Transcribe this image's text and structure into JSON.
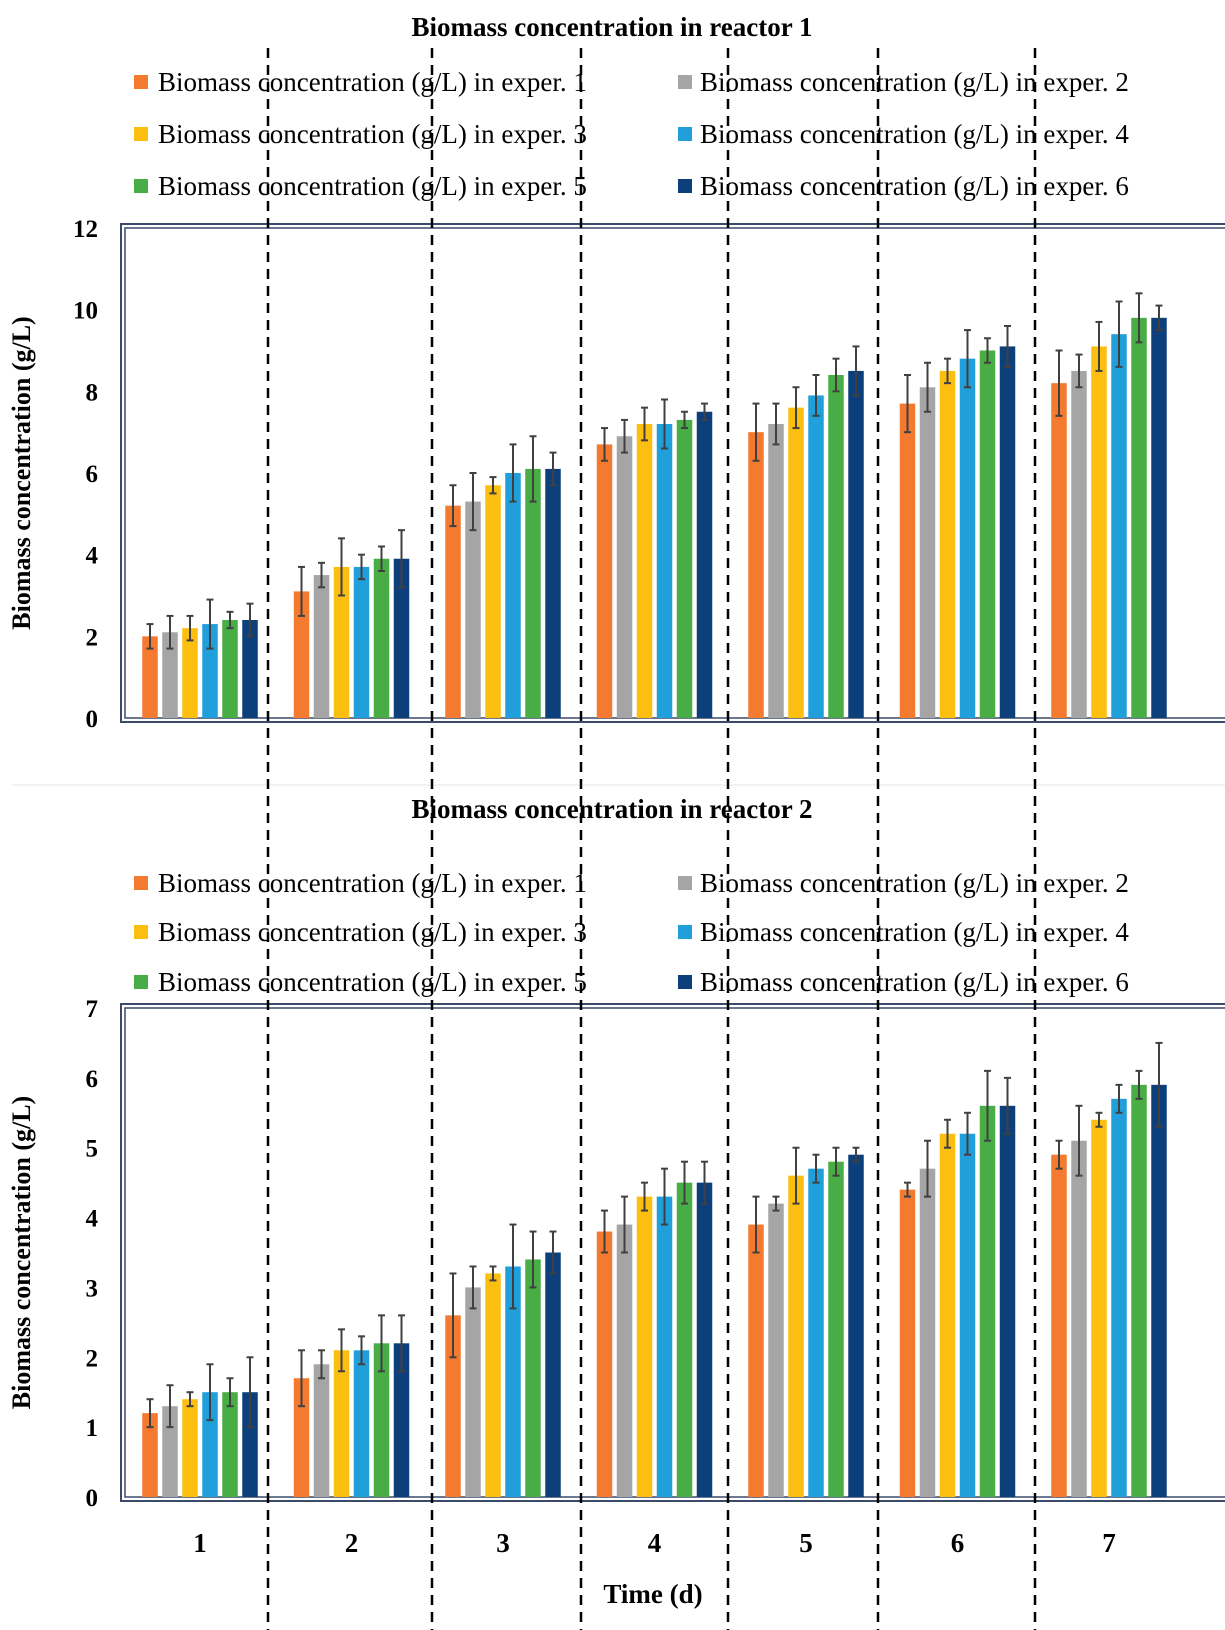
{
  "chart_data": [
    {
      "type": "bar",
      "title": "Biomass concentration in reactor 1",
      "ylabel": "Biomass concentration (g/L)",
      "xlabel": "",
      "ylim": [
        0,
        12
      ],
      "yticks": [
        0,
        2,
        4,
        6,
        8,
        10,
        12
      ],
      "grid": false,
      "legend": "top",
      "categories": [
        "1",
        "2",
        "3",
        "4",
        "5",
        "6",
        "7"
      ],
      "series": [
        {
          "name": "Biomass concentration (g/L) in exper. 1",
          "color": "#f47a2f",
          "values": [
            2.0,
            3.1,
            5.2,
            6.7,
            7.0,
            7.7,
            8.2
          ],
          "errors": [
            0.3,
            0.6,
            0.5,
            0.4,
            0.7,
            0.7,
            0.8
          ]
        },
        {
          "name": "Biomass concentration (g/L) in exper. 2",
          "color": "#a5a5a5",
          "values": [
            2.1,
            3.5,
            5.3,
            6.9,
            7.2,
            8.1,
            8.5
          ],
          "errors": [
            0.4,
            0.3,
            0.7,
            0.4,
            0.5,
            0.6,
            0.4
          ]
        },
        {
          "name": "Biomass concentration (g/L) in exper. 3",
          "color": "#fdbf0f",
          "values": [
            2.2,
            3.7,
            5.7,
            7.2,
            7.6,
            8.5,
            9.1
          ],
          "errors": [
            0.3,
            0.7,
            0.2,
            0.4,
            0.5,
            0.3,
            0.6
          ]
        },
        {
          "name": "Biomass concentration (g/L) in exper. 4",
          "color": "#219fdb",
          "values": [
            2.3,
            3.7,
            6.0,
            7.2,
            7.9,
            8.8,
            9.4
          ],
          "errors": [
            0.6,
            0.3,
            0.7,
            0.6,
            0.5,
            0.7,
            0.8
          ]
        },
        {
          "name": "Biomass concentration (g/L) in exper. 5",
          "color": "#47ad44",
          "values": [
            2.4,
            3.9,
            6.1,
            7.3,
            8.4,
            9.0,
            9.8
          ],
          "errors": [
            0.2,
            0.3,
            0.8,
            0.2,
            0.4,
            0.3,
            0.6
          ]
        },
        {
          "name": "Biomass concentration (g/L) in exper. 6",
          "color": "#0d3f7a",
          "values": [
            2.4,
            3.9,
            6.1,
            7.5,
            8.5,
            9.1,
            9.8
          ],
          "errors": [
            0.4,
            0.7,
            0.4,
            0.2,
            0.6,
            0.5,
            0.3
          ]
        }
      ]
    },
    {
      "type": "bar",
      "title": "Biomass concentration in reactor 2",
      "ylabel": "Biomass concentration (g/L)",
      "xlabel": "Time (d)",
      "ylim": [
        0,
        7
      ],
      "yticks": [
        0,
        1,
        2,
        3,
        4,
        5,
        6,
        7
      ],
      "grid": false,
      "legend": "top",
      "categories": [
        "1",
        "2",
        "3",
        "4",
        "5",
        "6",
        "7"
      ],
      "series": [
        {
          "name": "Biomass concentration (g/L) in exper. 1",
          "color": "#f47a2f",
          "values": [
            1.2,
            1.7,
            2.6,
            3.8,
            3.9,
            4.4,
            4.9
          ],
          "errors": [
            0.2,
            0.4,
            0.6,
            0.3,
            0.4,
            0.1,
            0.2
          ]
        },
        {
          "name": "Biomass concentration (g/L) in exper. 2",
          "color": "#a5a5a5",
          "values": [
            1.3,
            1.9,
            3.0,
            3.9,
            4.2,
            4.7,
            5.1
          ],
          "errors": [
            0.3,
            0.2,
            0.3,
            0.4,
            0.1,
            0.4,
            0.5
          ]
        },
        {
          "name": "Biomass concentration (g/L) in exper. 3",
          "color": "#fdbf0f",
          "values": [
            1.4,
            2.1,
            3.2,
            4.3,
            4.6,
            5.2,
            5.4
          ],
          "errors": [
            0.1,
            0.3,
            0.1,
            0.2,
            0.4,
            0.2,
            0.1
          ]
        },
        {
          "name": "Biomass concentration (g/L) in exper. 4",
          "color": "#219fdb",
          "values": [
            1.5,
            2.1,
            3.3,
            4.3,
            4.7,
            5.2,
            5.7
          ],
          "errors": [
            0.4,
            0.2,
            0.6,
            0.4,
            0.2,
            0.3,
            0.2
          ]
        },
        {
          "name": "Biomass concentration (g/L) in exper. 5",
          "color": "#47ad44",
          "values": [
            1.5,
            2.2,
            3.4,
            4.5,
            4.8,
            5.6,
            5.9
          ],
          "errors": [
            0.2,
            0.4,
            0.4,
            0.3,
            0.2,
            0.5,
            0.2
          ]
        },
        {
          "name": "Biomass concentration (g/L) in exper. 6",
          "color": "#0d3f7a",
          "values": [
            1.5,
            2.2,
            3.5,
            4.5,
            4.9,
            5.6,
            5.9
          ],
          "errors": [
            0.5,
            0.4,
            0.3,
            0.3,
            0.1,
            0.4,
            0.6
          ]
        }
      ]
    }
  ]
}
